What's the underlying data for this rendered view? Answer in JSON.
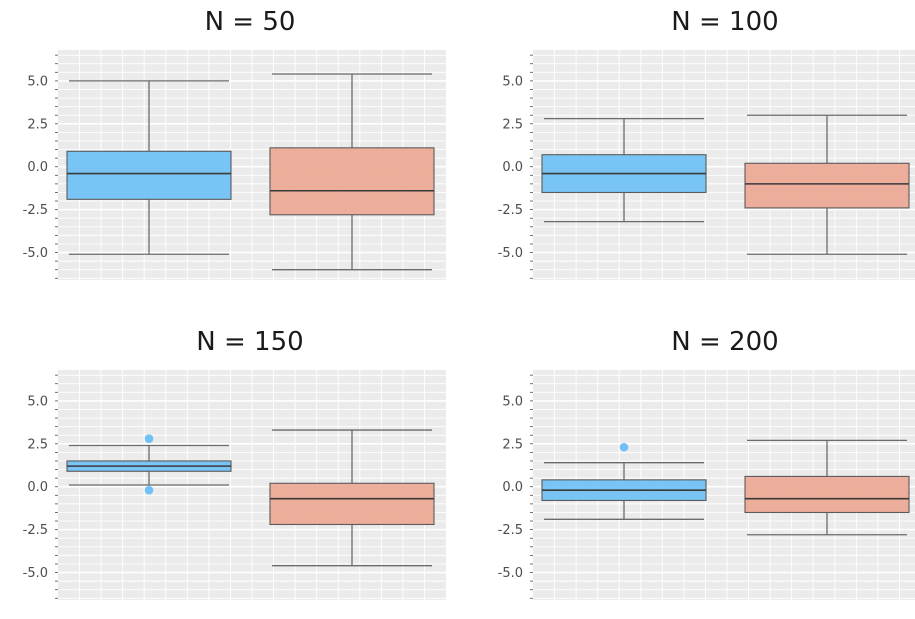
{
  "chart_data": [
    {
      "type": "boxplot",
      "title": "N = 50",
      "ylim": [
        -6.6,
        6.8
      ],
      "yticks": [
        "5.0",
        "2.5",
        "0.0",
        "-2.5",
        "-5.0"
      ],
      "ytick_values": [
        5,
        2.5,
        0,
        -2.5,
        -5
      ],
      "grid": true,
      "boxes": [
        {
          "color": "#6EC1F5",
          "whisker_low": -5.1,
          "q1": -1.9,
          "median": -0.4,
          "q3": 0.9,
          "whisker_high": 5.0,
          "outliers": []
        },
        {
          "color": "#EBA894",
          "whisker_low": -6.0,
          "q1": -2.8,
          "median": -1.4,
          "q3": 1.1,
          "whisker_high": 5.4,
          "outliers": []
        }
      ]
    },
    {
      "type": "boxplot",
      "title": "N = 100",
      "ylim": [
        -6.6,
        6.8
      ],
      "yticks": [
        "5.0",
        "2.5",
        "0.0",
        "-2.5",
        "-5.0"
      ],
      "ytick_values": [
        5,
        2.5,
        0,
        -2.5,
        -5
      ],
      "grid": true,
      "boxes": [
        {
          "color": "#6EC1F5",
          "whisker_low": -3.2,
          "q1": -1.5,
          "median": -0.4,
          "q3": 0.7,
          "whisker_high": 2.8,
          "outliers": []
        },
        {
          "color": "#EBA894",
          "whisker_low": -5.1,
          "q1": -2.4,
          "median": -1.0,
          "q3": 0.2,
          "whisker_high": 3.0,
          "outliers": []
        }
      ]
    },
    {
      "type": "boxplot",
      "title": "N = 150",
      "ylim": [
        -6.6,
        6.8
      ],
      "yticks": [
        "5.0",
        "2.5",
        "0.0",
        "-2.5",
        "-5.0"
      ],
      "ytick_values": [
        5,
        2.5,
        0,
        -2.5,
        -5
      ],
      "grid": true,
      "boxes": [
        {
          "color": "#6EC1F5",
          "whisker_low": 0.1,
          "q1": 0.9,
          "median": 1.2,
          "q3": 1.5,
          "whisker_high": 2.4,
          "outliers": [
            2.8,
            -0.2
          ]
        },
        {
          "color": "#EBA894",
          "whisker_low": -4.6,
          "q1": -2.2,
          "median": -0.7,
          "q3": 0.2,
          "whisker_high": 3.3,
          "outliers": []
        }
      ]
    },
    {
      "type": "boxplot",
      "title": "N = 200",
      "ylim": [
        -6.6,
        6.8
      ],
      "yticks": [
        "5.0",
        "2.5",
        "0.0",
        "-2.5",
        "-5.0"
      ],
      "ytick_values": [
        5,
        2.5,
        0,
        -2.5,
        -5
      ],
      "grid": true,
      "boxes": [
        {
          "color": "#6EC1F5",
          "whisker_low": -1.9,
          "q1": -0.8,
          "median": -0.2,
          "q3": 0.4,
          "whisker_high": 1.4,
          "outliers": [
            2.3
          ]
        },
        {
          "color": "#EBA894",
          "whisker_low": -2.8,
          "q1": -1.5,
          "median": -0.7,
          "q3": 0.6,
          "whisker_high": 2.7,
          "outliers": []
        }
      ]
    }
  ]
}
